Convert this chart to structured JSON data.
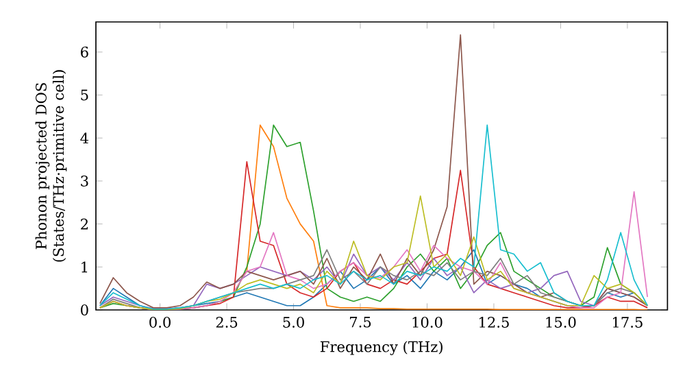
{
  "chart_data": {
    "type": "line",
    "xlabel": "Frequency (THz)",
    "ylabel": "Phonon projected DOS (States/THz·primitive cell)",
    "xlim": [
      -2.4,
      19.0
    ],
    "ylim": [
      0,
      6.7
    ],
    "xticks": [
      {
        "value": 0,
        "label": "0.0"
      },
      2.5,
      {
        "value": 5,
        "label": "5.0"
      },
      7.5,
      {
        "value": 10,
        "label": "10.0"
      },
      12.5,
      {
        "value": 15,
        "label": "15.0"
      },
      17.5
    ],
    "yticks": [
      0,
      1,
      2,
      3,
      4,
      5,
      6
    ],
    "x": [
      -2.25,
      -1.75,
      -1.25,
      -0.75,
      -0.25,
      0.25,
      0.75,
      1.25,
      1.75,
      2.25,
      2.75,
      3.25,
      3.75,
      4.25,
      4.75,
      5.25,
      5.75,
      6.25,
      6.75,
      7.25,
      7.75,
      8.25,
      8.75,
      9.25,
      9.75,
      10.25,
      10.75,
      11.25,
      11.75,
      12.25,
      12.75,
      13.25,
      13.75,
      14.25,
      14.75,
      15.25,
      15.75,
      16.25,
      16.75,
      17.25,
      17.75,
      18.25
    ],
    "series": [
      {
        "color": "#1f77b4",
        "values": [
          0.1,
          0.5,
          0.3,
          0.1,
          0.02,
          0.02,
          0.05,
          0.1,
          0.15,
          0.2,
          0.3,
          0.4,
          0.3,
          0.2,
          0.1,
          0.1,
          0.3,
          0.6,
          0.9,
          0.5,
          0.7,
          1.0,
          0.6,
          0.8,
          0.5,
          0.9,
          0.7,
          1.0,
          1.4,
          0.6,
          0.8,
          0.6,
          0.5,
          0.3,
          0.2,
          0.1,
          0.05,
          0.1,
          0.4,
          0.3,
          0.4,
          0.1
        ]
      },
      {
        "color": "#ff7f0e",
        "values": [
          null,
          null,
          null,
          null,
          null,
          null,
          null,
          null,
          null,
          null,
          0.4,
          0.9,
          4.3,
          3.8,
          2.6,
          2.0,
          1.6,
          0.1,
          0.05,
          0.05,
          0.05,
          0.03,
          0.03,
          0.02,
          0.02,
          0.02,
          0.02,
          0.02,
          0.02,
          0.02,
          0.01,
          0.01,
          0.01,
          0.01,
          0.01,
          0.01,
          0.01,
          0.01,
          0.01,
          0.01,
          0.01,
          0.0
        ]
      },
      {
        "color": "#2ca02c",
        "values": [
          0.05,
          0.15,
          0.1,
          0.05,
          0.01,
          0.01,
          0.02,
          0.05,
          0.1,
          0.2,
          0.3,
          1.0,
          2.0,
          4.3,
          3.8,
          3.9,
          2.3,
          0.5,
          0.3,
          0.2,
          0.3,
          0.2,
          0.5,
          1.0,
          1.3,
          0.9,
          1.2,
          0.5,
          0.9,
          1.5,
          1.8,
          0.9,
          0.7,
          0.5,
          0.3,
          0.2,
          0.1,
          0.3,
          1.45,
          0.6,
          0.4,
          0.1
        ]
      },
      {
        "color": "#d62728",
        "values": [
          0.05,
          0.2,
          0.1,
          0.05,
          0.01,
          0.01,
          0.02,
          0.05,
          0.1,
          0.15,
          0.3,
          3.45,
          1.6,
          1.5,
          0.6,
          0.4,
          0.3,
          0.5,
          0.9,
          1.1,
          0.6,
          0.5,
          0.7,
          0.6,
          0.9,
          1.2,
          1.3,
          3.25,
          1.0,
          0.6,
          0.5,
          0.4,
          0.3,
          0.2,
          0.1,
          0.05,
          0.05,
          0.1,
          0.3,
          0.2,
          0.2,
          0.05
        ]
      },
      {
        "color": "#9467bd",
        "values": [
          0.1,
          0.3,
          0.2,
          0.1,
          0.03,
          0.03,
          0.05,
          0.1,
          0.6,
          0.5,
          0.6,
          0.8,
          1.0,
          0.9,
          0.8,
          0.9,
          0.7,
          1.0,
          0.6,
          1.3,
          0.8,
          1.0,
          0.7,
          1.1,
          0.7,
          1.2,
          0.8,
          1.0,
          0.4,
          0.7,
          0.5,
          0.6,
          0.4,
          0.5,
          0.8,
          0.9,
          0.2,
          0.1,
          0.5,
          0.4,
          0.3,
          0.1
        ]
      },
      {
        "color": "#8c564b",
        "values": [
          0.15,
          0.75,
          0.4,
          0.2,
          0.05,
          0.05,
          0.1,
          0.3,
          0.65,
          0.5,
          0.6,
          0.9,
          0.8,
          0.7,
          0.8,
          0.9,
          0.6,
          1.2,
          0.5,
          1.0,
          0.7,
          1.3,
          0.6,
          1.2,
          0.8,
          1.4,
          2.4,
          6.4,
          0.6,
          0.9,
          0.8,
          0.6,
          0.4,
          0.3,
          0.4,
          0.2,
          0.1,
          0.1,
          0.5,
          0.4,
          0.3,
          0.1
        ]
      },
      {
        "color": "#e377c2",
        "values": [
          0.05,
          0.2,
          0.1,
          0.05,
          0.01,
          0.01,
          0.02,
          0.05,
          0.1,
          0.2,
          0.4,
          0.9,
          1.0,
          1.8,
          0.8,
          0.7,
          0.5,
          0.6,
          0.9,
          1.1,
          0.8,
          0.75,
          1.0,
          1.4,
          0.9,
          1.5,
          1.2,
          1.0,
          0.9,
          0.6,
          1.1,
          0.5,
          0.4,
          0.3,
          0.2,
          0.1,
          0.05,
          0.05,
          0.3,
          0.4,
          2.75,
          0.3
        ]
      },
      {
        "color": "#7f7f7f",
        "values": [
          0.05,
          0.25,
          0.15,
          0.05,
          0.01,
          0.01,
          0.03,
          0.1,
          0.2,
          0.3,
          0.4,
          0.45,
          0.5,
          0.5,
          0.6,
          0.7,
          0.8,
          1.4,
          0.7,
          0.9,
          0.6,
          1.0,
          0.8,
          0.7,
          0.9,
          0.8,
          1.1,
          0.7,
          0.9,
          0.8,
          1.2,
          0.6,
          0.8,
          0.4,
          0.3,
          0.2,
          0.1,
          0.1,
          0.4,
          0.5,
          0.4,
          0.1
        ]
      },
      {
        "color": "#bcbd22",
        "values": [
          0.05,
          0.2,
          0.1,
          0.05,
          0.01,
          0.01,
          0.03,
          0.1,
          0.2,
          0.25,
          0.4,
          0.6,
          0.7,
          0.6,
          0.5,
          0.6,
          0.4,
          0.9,
          0.6,
          1.6,
          0.8,
          0.7,
          1.0,
          1.1,
          2.65,
          1.0,
          1.3,
          0.8,
          1.7,
          0.7,
          0.9,
          0.5,
          0.4,
          0.3,
          0.2,
          0.1,
          0.1,
          0.8,
          0.5,
          0.6,
          0.4,
          0.1
        ]
      },
      {
        "color": "#17becf",
        "values": [
          0.1,
          0.4,
          0.25,
          0.1,
          0.02,
          0.02,
          0.05,
          0.1,
          0.2,
          0.3,
          0.4,
          0.5,
          0.6,
          0.5,
          0.6,
          0.5,
          0.7,
          0.8,
          0.6,
          0.9,
          0.7,
          0.8,
          0.6,
          0.9,
          0.8,
          1.0,
          0.9,
          1.2,
          1.0,
          4.3,
          1.4,
          1.3,
          0.9,
          1.1,
          0.4,
          0.2,
          0.1,
          0.1,
          0.7,
          1.8,
          0.7,
          0.1
        ]
      }
    ]
  }
}
